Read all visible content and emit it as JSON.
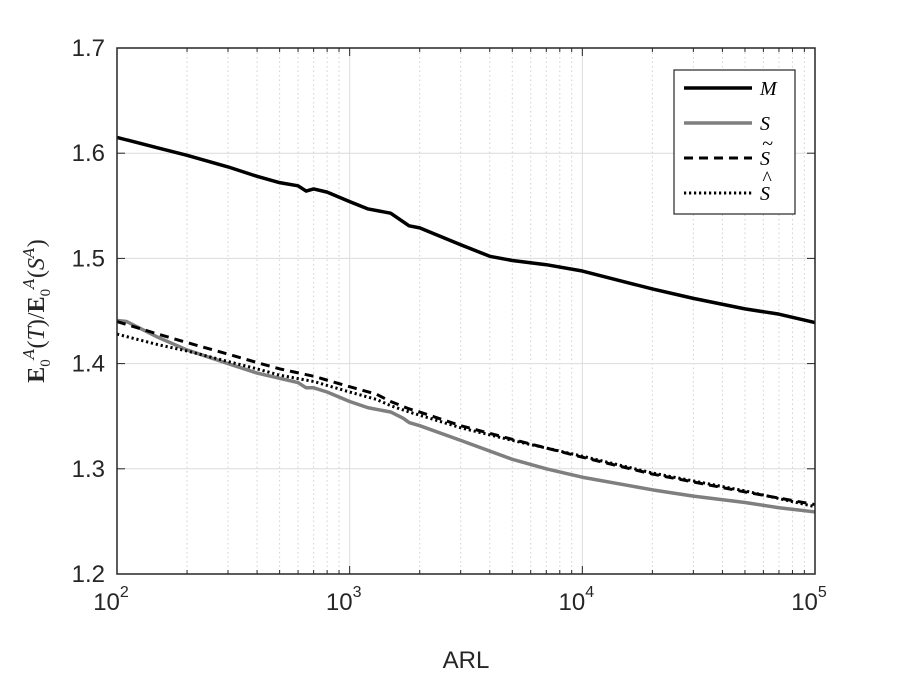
{
  "chart_data": {
    "type": "line",
    "xscale": "log",
    "xlabel": "ARL",
    "ylabel": "E0A(T)/E0A(SA)",
    "xlim": [
      100,
      100000
    ],
    "ylim": [
      1.2,
      1.7
    ],
    "x_ticks": [
      {
        "base": "10",
        "exp": "2",
        "value": 100
      },
      {
        "base": "10",
        "exp": "3",
        "value": 1000
      },
      {
        "base": "10",
        "exp": "4",
        "value": 10000
      },
      {
        "base": "10",
        "exp": "5",
        "value": 100000
      }
    ],
    "y_ticks": [
      "1.2",
      "1.3",
      "1.4",
      "1.5",
      "1.6",
      "1.7"
    ],
    "grid": true,
    "legend_position": "top-right",
    "series": [
      {
        "name": "M",
        "color": "#000000",
        "style": "solid",
        "width": 3.5,
        "x": [
          100,
          150,
          200,
          300,
          400,
          500,
          600,
          650,
          700,
          800,
          1000,
          1200,
          1500,
          1800,
          2000,
          3000,
          4000,
          5000,
          7000,
          10000,
          15000,
          20000,
          30000,
          50000,
          70000,
          100000
        ],
        "y": [
          1.615,
          1.605,
          1.598,
          1.587,
          1.578,
          1.572,
          1.569,
          1.564,
          1.566,
          1.563,
          1.554,
          1.547,
          1.543,
          1.531,
          1.529,
          1.513,
          1.502,
          1.498,
          1.494,
          1.488,
          1.478,
          1.471,
          1.462,
          1.452,
          1.447,
          1.439
        ]
      },
      {
        "name": "S",
        "color": "#7f7f7f",
        "style": "solid",
        "width": 3.5,
        "x": [
          100,
          110,
          150,
          200,
          300,
          400,
          500,
          600,
          650,
          700,
          800,
          1000,
          1200,
          1500,
          1700,
          1800,
          2000,
          3000,
          5000,
          7000,
          10000,
          20000,
          30000,
          50000,
          70000,
          100000
        ],
        "y": [
          1.441,
          1.44,
          1.425,
          1.413,
          1.4,
          1.391,
          1.386,
          1.382,
          1.377,
          1.377,
          1.373,
          1.364,
          1.358,
          1.354,
          1.348,
          1.344,
          1.341,
          1.327,
          1.309,
          1.3,
          1.292,
          1.28,
          1.274,
          1.268,
          1.263,
          1.259
        ]
      },
      {
        "name": "S~",
        "color": "#000000",
        "style": "dashed",
        "width": 3,
        "x": [
          100,
          150,
          200,
          300,
          400,
          500,
          700,
          1000,
          1300,
          1500,
          1800,
          2000,
          3000,
          5000,
          10000,
          20000,
          50000,
          100000
        ],
        "y": [
          1.44,
          1.428,
          1.42,
          1.409,
          1.401,
          1.395,
          1.388,
          1.378,
          1.371,
          1.364,
          1.357,
          1.354,
          1.341,
          1.328,
          1.311,
          1.295,
          1.278,
          1.266
        ]
      },
      {
        "name": "S^",
        "color": "#000000",
        "style": "dotted",
        "width": 3,
        "x": [
          100,
          150,
          200,
          300,
          400,
          500,
          700,
          1000,
          1300,
          1500,
          1800,
          2000,
          3000,
          5000,
          10000,
          20000,
          50000,
          100000
        ],
        "y": [
          1.428,
          1.418,
          1.412,
          1.402,
          1.395,
          1.389,
          1.383,
          1.373,
          1.366,
          1.36,
          1.354,
          1.351,
          1.339,
          1.327,
          1.312,
          1.296,
          1.279,
          1.264
        ]
      }
    ]
  }
}
